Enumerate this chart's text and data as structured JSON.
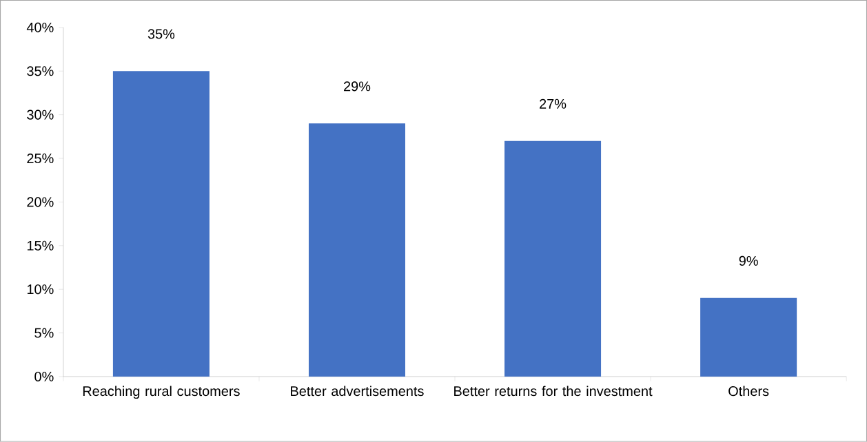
{
  "chart_data": {
    "type": "bar",
    "categories": [
      "Reaching rural customers",
      "Better advertisements",
      "Better returns for the investment",
      "Others"
    ],
    "values": [
      35,
      29,
      27,
      9
    ],
    "value_labels": [
      "35%",
      "29%",
      "27%",
      "9%"
    ],
    "color": "#4472c4",
    "ylim": [
      0,
      40
    ],
    "yticks": [
      {
        "value": 0,
        "label": "0%"
      },
      {
        "value": 5,
        "label": "5%"
      },
      {
        "value": 10,
        "label": "10%"
      },
      {
        "value": 15,
        "label": "15%"
      },
      {
        "value": 20,
        "label": "20%"
      },
      {
        "value": 25,
        "label": "25%"
      },
      {
        "value": 30,
        "label": "30%"
      },
      {
        "value": 35,
        "label": "35%"
      },
      {
        "value": 40,
        "label": "40%"
      }
    ],
    "grid": false
  }
}
